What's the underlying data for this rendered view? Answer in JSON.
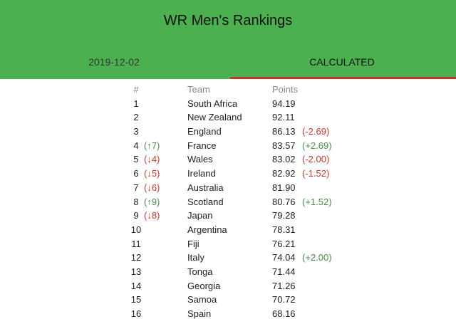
{
  "header": {
    "title": "WR Men's Rankings",
    "tabs": [
      {
        "label": "2019-12-02",
        "active": false
      },
      {
        "label": "CALCULATED",
        "active": true
      }
    ],
    "background_color": "#4caf50",
    "active_tab_underline_color": "#c0392b"
  },
  "table": {
    "columns": [
      "#",
      "Team",
      "Points"
    ],
    "rows": [
      {
        "rank": "1",
        "movement": "",
        "movement_dir": "",
        "team": "South Africa",
        "points": "94.19",
        "delta": "",
        "delta_dir": ""
      },
      {
        "rank": "2",
        "movement": "",
        "movement_dir": "",
        "team": "New Zealand",
        "points": "92.11",
        "delta": "",
        "delta_dir": ""
      },
      {
        "rank": "3",
        "movement": "",
        "movement_dir": "",
        "team": "England",
        "points": "86.13",
        "delta": "(-2.69)",
        "delta_dir": "down"
      },
      {
        "rank": "4",
        "movement": "(↑7)",
        "movement_dir": "up",
        "team": "France",
        "points": "83.57",
        "delta": "(+2.69)",
        "delta_dir": "up"
      },
      {
        "rank": "5",
        "movement": "(↓4)",
        "movement_dir": "down",
        "team": "Wales",
        "points": "83.02",
        "delta": "(-2.00)",
        "delta_dir": "down"
      },
      {
        "rank": "6",
        "movement": "(↓5)",
        "movement_dir": "down",
        "team": "Ireland",
        "points": "82.92",
        "delta": "(-1.52)",
        "delta_dir": "down"
      },
      {
        "rank": "7",
        "movement": "(↓6)",
        "movement_dir": "down",
        "team": "Australia",
        "points": "81.90",
        "delta": "",
        "delta_dir": ""
      },
      {
        "rank": "8",
        "movement": "(↑9)",
        "movement_dir": "up",
        "team": "Scotland",
        "points": "80.76",
        "delta": "(+1.52)",
        "delta_dir": "up"
      },
      {
        "rank": "9",
        "movement": "(↓8)",
        "movement_dir": "down",
        "team": "Japan",
        "points": "79.28",
        "delta": "",
        "delta_dir": ""
      },
      {
        "rank": "10",
        "movement": "",
        "movement_dir": "",
        "team": "Argentina",
        "points": "78.31",
        "delta": "",
        "delta_dir": ""
      },
      {
        "rank": "11",
        "movement": "",
        "movement_dir": "",
        "team": "Fiji",
        "points": "76.21",
        "delta": "",
        "delta_dir": ""
      },
      {
        "rank": "12",
        "movement": "",
        "movement_dir": "",
        "team": "Italy",
        "points": "74.04",
        "delta": "(+2.00)",
        "delta_dir": "up"
      },
      {
        "rank": "13",
        "movement": "",
        "movement_dir": "",
        "team": "Tonga",
        "points": "71.44",
        "delta": "",
        "delta_dir": ""
      },
      {
        "rank": "14",
        "movement": "",
        "movement_dir": "",
        "team": "Georgia",
        "points": "71.26",
        "delta": "",
        "delta_dir": ""
      },
      {
        "rank": "15",
        "movement": "",
        "movement_dir": "",
        "team": "Samoa",
        "points": "70.72",
        "delta": "",
        "delta_dir": ""
      },
      {
        "rank": "16",
        "movement": "",
        "movement_dir": "",
        "team": "Spain",
        "points": "68.16",
        "delta": "",
        "delta_dir": ""
      }
    ]
  }
}
